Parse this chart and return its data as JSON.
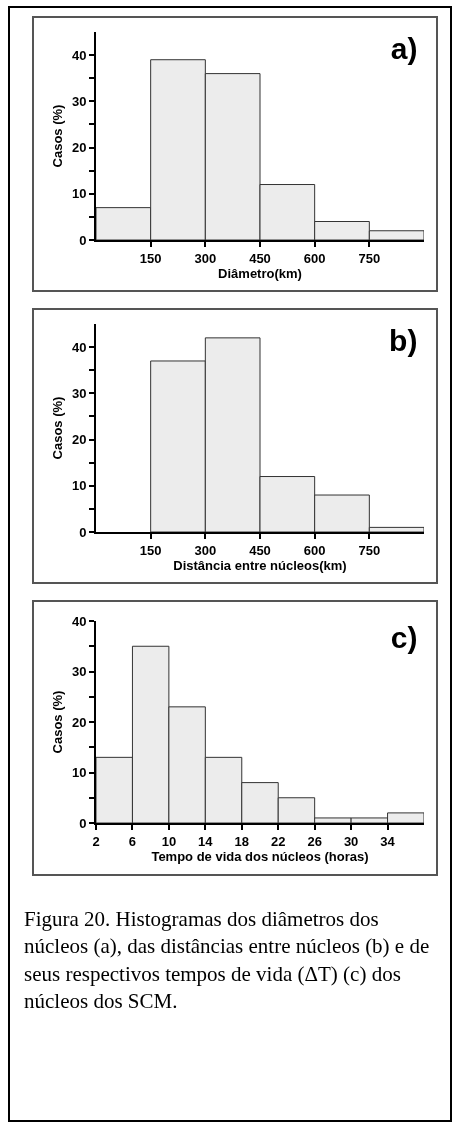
{
  "chart_data": [
    {
      "type": "histogram",
      "title": "a)",
      "xlabel": "Diâmetro(km)",
      "ylabel": "Casos (%)",
      "color": "#ececec",
      "bins": [
        0,
        150,
        300,
        450,
        600,
        750,
        900
      ],
      "values": [
        7,
        39,
        36,
        12,
        4,
        2
      ],
      "xlim": [
        0,
        900
      ],
      "xticks": [
        150,
        300,
        450,
        600,
        750
      ],
      "ylim": [
        0,
        45
      ],
      "yticks": [
        0,
        {
          "value": 5,
          "label": null
        },
        10,
        {
          "value": 15,
          "label": null
        },
        20,
        {
          "value": 25,
          "label": null
        },
        30,
        {
          "value": 35,
          "label": null
        },
        40
      ],
      "grid": false
    },
    {
      "type": "histogram",
      "title": "b)",
      "xlabel": "Distância entre núcleos(km)",
      "ylabel": "Casos (%)",
      "color": "#ececec",
      "bins": [
        0,
        150,
        300,
        450,
        600,
        750,
        900
      ],
      "values": [
        null,
        37,
        42,
        12,
        8,
        1
      ],
      "xlim": [
        0,
        900
      ],
      "xticks": [
        150,
        300,
        450,
        600,
        750
      ],
      "ylim": [
        0,
        45
      ],
      "yticks": [
        0,
        {
          "value": 5,
          "label": null
        },
        10,
        {
          "value": 15,
          "label": null
        },
        20,
        {
          "value": 25,
          "label": null
        },
        30,
        {
          "value": 35,
          "label": null
        },
        40
      ],
      "grid": false
    },
    {
      "type": "histogram",
      "title": "c)",
      "xlabel": "Tempo de vida dos núcleos (horas)",
      "ylabel": "Casos (%)",
      "color": "#ececec",
      "bins": [
        2,
        6,
        10,
        14,
        18,
        22,
        26,
        30,
        34,
        38
      ],
      "values": [
        13,
        35,
        23,
        13,
        8,
        5,
        1,
        1,
        2
      ],
      "xlim": [
        2,
        38
      ],
      "xticks": [
        2,
        6,
        10,
        14,
        18,
        22,
        26,
        30,
        34
      ],
      "ylim": [
        0,
        40
      ],
      "yticks": [
        0,
        {
          "value": 5,
          "label": null
        },
        10,
        {
          "value": 15,
          "label": null
        },
        20,
        {
          "value": 25,
          "label": null
        },
        30,
        {
          "value": 35,
          "label": null
        },
        40
      ],
      "grid": false,
      "annotations": [
        "Figura 20. Histogramas dos diâmetros dos núcleos (a), das distâncias entre núcleos (b) e de seus respectivos tempos de vida (ΔT) (c) dos núcleos dos SCM."
      ]
    }
  ]
}
